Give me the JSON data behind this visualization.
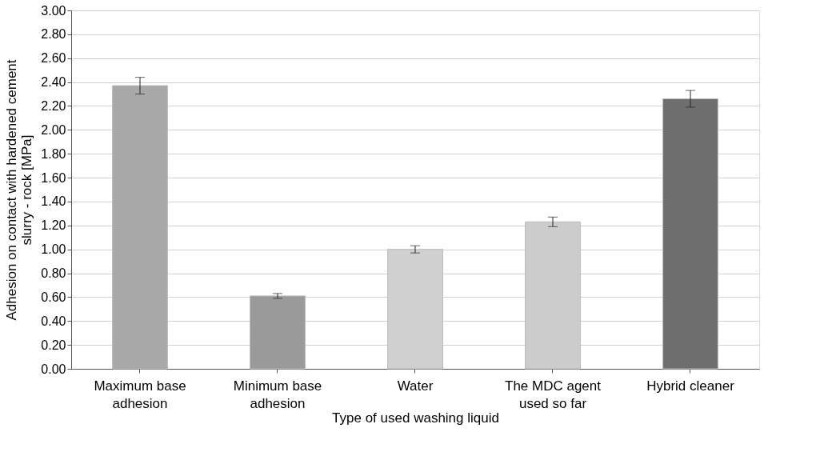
{
  "chart_data": {
    "type": "bar",
    "xlabel": "Type of used washing liquid",
    "ylabel": "Adhesion on contact with hardened cement\nslurry - rock [MPa]",
    "categories": [
      "Maximum base\nadhesion",
      "Minimum base\nadhesion",
      "Water",
      "The MDC agent\nused so far",
      "Hybrid cleaner"
    ],
    "values": [
      2.37,
      0.61,
      1.0,
      1.23,
      2.26
    ],
    "errors": [
      0.07,
      0.02,
      0.03,
      0.04,
      0.07
    ],
    "colors": [
      "#a8a8a8",
      "#9a9a9a",
      "#d0d0d0",
      "#cccccc",
      "#6e6e6e"
    ],
    "ylim": [
      0,
      3.0
    ],
    "yticks": [
      {
        "value": 0,
        "label": "0.00"
      },
      {
        "value": 0.2,
        "label": "0.20"
      },
      {
        "value": 0.4,
        "label": "0.40"
      },
      {
        "value": 0.6,
        "label": "0.60"
      },
      {
        "value": 0.8,
        "label": "0.80"
      },
      {
        "value": 1.0,
        "label": "1.00"
      },
      {
        "value": 1.2,
        "label": "1.20"
      },
      {
        "value": 1.4,
        "label": "1.40"
      },
      {
        "value": 1.6,
        "label": "1.60"
      },
      {
        "value": 1.8,
        "label": "1.80"
      },
      {
        "value": 2.0,
        "label": "2.00"
      },
      {
        "value": 2.2,
        "label": "2.20"
      },
      {
        "value": 2.4,
        "label": "2.40"
      },
      {
        "value": 2.6,
        "label": "2.60"
      },
      {
        "value": 2.8,
        "label": "2.80"
      },
      {
        "value": 3.0,
        "label": "3.00"
      }
    ],
    "grid": "y"
  }
}
